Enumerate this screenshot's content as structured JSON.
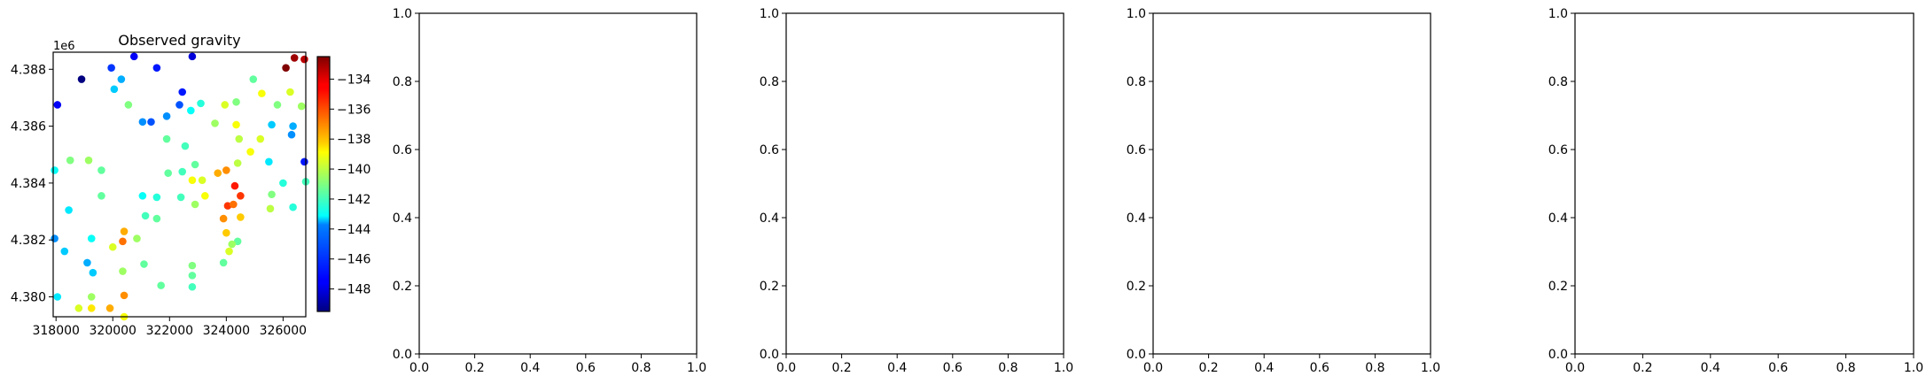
{
  "chart_data": [
    {
      "type": "scatter",
      "title": "Observed gravity",
      "xlabel": "",
      "ylabel": "",
      "xlim": [
        317900,
        326800
      ],
      "ylim": [
        4379300,
        4388600
      ],
      "x_ticks": [
        318000,
        320000,
        322000,
        324000,
        326000
      ],
      "x_tick_labels": [
        "318000",
        "320000",
        "322000",
        "324000",
        "326000"
      ],
      "y_ticks": [
        4380000,
        4382000,
        4384000,
        4386000,
        4388000
      ],
      "y_tick_labels": [
        "4.380",
        "4.382",
        "4.384",
        "4.386",
        "4.388"
      ],
      "y_offset_label": "1e6",
      "colorbar": {
        "colormap": "jet",
        "vmin": -149.5,
        "vmax": -132.5,
        "ticks": [
          -134,
          -136,
          -138,
          -140,
          -142,
          -144,
          -146,
          -148
        ],
        "tick_labels": [
          "−134",
          "−136",
          "−138",
          "−140",
          "−142",
          "−144",
          "−146",
          "−148"
        ]
      },
      "grid": false,
      "points": [
        {
          "x": 318050,
          "y": 4386750,
          "v": -147.5
        },
        {
          "x": 318900,
          "y": 4387650,
          "v": -149.5
        },
        {
          "x": 319950,
          "y": 4388050,
          "v": -146.5
        },
        {
          "x": 320750,
          "y": 4388450,
          "v": -147.5
        },
        {
          "x": 321550,
          "y": 4388050,
          "v": -147.0
        },
        {
          "x": 322800,
          "y": 4388450,
          "v": -148.0
        },
        {
          "x": 322450,
          "y": 4387200,
          "v": -147.0
        },
        {
          "x": 322350,
          "y": 4386750,
          "v": -146.0
        },
        {
          "x": 321900,
          "y": 4386350,
          "v": -145.0
        },
        {
          "x": 321350,
          "y": 4386150,
          "v": -146.0
        },
        {
          "x": 321050,
          "y": 4386150,
          "v": -145.0
        },
        {
          "x": 320050,
          "y": 4387300,
          "v": -144.0
        },
        {
          "x": 320300,
          "y": 4387650,
          "v": -144.5
        },
        {
          "x": 320550,
          "y": 4386750,
          "v": -141.0
        },
        {
          "x": 322750,
          "y": 4386550,
          "v": -143.0
        },
        {
          "x": 323100,
          "y": 4386800,
          "v": -142.5
        },
        {
          "x": 323600,
          "y": 4386100,
          "v": -140.5
        },
        {
          "x": 323950,
          "y": 4386750,
          "v": -139.5
        },
        {
          "x": 324350,
          "y": 4386850,
          "v": -141.0
        },
        {
          "x": 324950,
          "y": 4387650,
          "v": -141.5
        },
        {
          "x": 325250,
          "y": 4387150,
          "v": -139.0
        },
        {
          "x": 325800,
          "y": 4386750,
          "v": -141.0
        },
        {
          "x": 326250,
          "y": 4387200,
          "v": -139.5
        },
        {
          "x": 326650,
          "y": 4386700,
          "v": -140.5
        },
        {
          "x": 326100,
          "y": 4388050,
          "v": -132.5
        },
        {
          "x": 326400,
          "y": 4388400,
          "v": -133.0
        },
        {
          "x": 326750,
          "y": 4388350,
          "v": -133.5
        },
        {
          "x": 326350,
          "y": 4386000,
          "v": -144.5
        },
        {
          "x": 326300,
          "y": 4385700,
          "v": -145.0
        },
        {
          "x": 325600,
          "y": 4386050,
          "v": -144.0
        },
        {
          "x": 325200,
          "y": 4385550,
          "v": -139.5
        },
        {
          "x": 324350,
          "y": 4386050,
          "v": -139.0
        },
        {
          "x": 324450,
          "y": 4385550,
          "v": -140.0
        },
        {
          "x": 324850,
          "y": 4385100,
          "v": -139.0
        },
        {
          "x": 324400,
          "y": 4384700,
          "v": -140.0
        },
        {
          "x": 324000,
          "y": 4384450,
          "v": -137.0
        },
        {
          "x": 323700,
          "y": 4384350,
          "v": -137.5
        },
        {
          "x": 322900,
          "y": 4384650,
          "v": -141.5
        },
        {
          "x": 322550,
          "y": 4385300,
          "v": -142.0
        },
        {
          "x": 321900,
          "y": 4385550,
          "v": -141.5
        },
        {
          "x": 321950,
          "y": 4384350,
          "v": -141.5
        },
        {
          "x": 322450,
          "y": 4384400,
          "v": -142.0
        },
        {
          "x": 322800,
          "y": 4384100,
          "v": -139.0
        },
        {
          "x": 323150,
          "y": 4384100,
          "v": -139.5
        },
        {
          "x": 322400,
          "y": 4383500,
          "v": -142.0
        },
        {
          "x": 322900,
          "y": 4383250,
          "v": -140.5
        },
        {
          "x": 323250,
          "y": 4383550,
          "v": -139.0
        },
        {
          "x": 324300,
          "y": 4383900,
          "v": -135.0
        },
        {
          "x": 324500,
          "y": 4383550,
          "v": -135.5
        },
        {
          "x": 324050,
          "y": 4383200,
          "v": -135.5
        },
        {
          "x": 324250,
          "y": 4383250,
          "v": -136.5
        },
        {
          "x": 323900,
          "y": 4382750,
          "v": -137.0
        },
        {
          "x": 324500,
          "y": 4382800,
          "v": -138.0
        },
        {
          "x": 324000,
          "y": 4382250,
          "v": -138.0
        },
        {
          "x": 324400,
          "y": 4381950,
          "v": -141.5
        },
        {
          "x": 324200,
          "y": 4381850,
          "v": -140.5
        },
        {
          "x": 324100,
          "y": 4381600,
          "v": -139.5
        },
        {
          "x": 323900,
          "y": 4381200,
          "v": -141.5
        },
        {
          "x": 325500,
          "y": 4384750,
          "v": -143.5
        },
        {
          "x": 326000,
          "y": 4384000,
          "v": -142.5
        },
        {
          "x": 325600,
          "y": 4383600,
          "v": -141.0
        },
        {
          "x": 325550,
          "y": 4383100,
          "v": -140.0
        },
        {
          "x": 326350,
          "y": 4383150,
          "v": -142.5
        },
        {
          "x": 326750,
          "y": 4384750,
          "v": -147.0
        },
        {
          "x": 326800,
          "y": 4384050,
          "v": -142.0
        },
        {
          "x": 317950,
          "y": 4384450,
          "v": -143.0
        },
        {
          "x": 318500,
          "y": 4384800,
          "v": -141.0
        },
        {
          "x": 319150,
          "y": 4384800,
          "v": -140.5
        },
        {
          "x": 319600,
          "y": 4384450,
          "v": -141.5
        },
        {
          "x": 319600,
          "y": 4383550,
          "v": -141.5
        },
        {
          "x": 318450,
          "y": 4383050,
          "v": -143.5
        },
        {
          "x": 317950,
          "y": 4382050,
          "v": -145.0
        },
        {
          "x": 318300,
          "y": 4381600,
          "v": -144.0
        },
        {
          "x": 319100,
          "y": 4381200,
          "v": -144.5
        },
        {
          "x": 319250,
          "y": 4382050,
          "v": -143.0
        },
        {
          "x": 319300,
          "y": 4380850,
          "v": -144.0
        },
        {
          "x": 321050,
          "y": 4383550,
          "v": -143.0
        },
        {
          "x": 321550,
          "y": 4383500,
          "v": -142.5
        },
        {
          "x": 321150,
          "y": 4382850,
          "v": -142.0
        },
        {
          "x": 321550,
          "y": 4382750,
          "v": -141.5
        },
        {
          "x": 320400,
          "y": 4382300,
          "v": -137.5
        },
        {
          "x": 320350,
          "y": 4381950,
          "v": -136.5
        },
        {
          "x": 320850,
          "y": 4382050,
          "v": -140.5
        },
        {
          "x": 320000,
          "y": 4381750,
          "v": -139.5
        },
        {
          "x": 321100,
          "y": 4381150,
          "v": -141.5
        },
        {
          "x": 320350,
          "y": 4380900,
          "v": -140.5
        },
        {
          "x": 321700,
          "y": 4380400,
          "v": -141.5
        },
        {
          "x": 322800,
          "y": 4381100,
          "v": -141.0
        },
        {
          "x": 322800,
          "y": 4380750,
          "v": -141.5
        },
        {
          "x": 322800,
          "y": 4380350,
          "v": -142.0
        },
        {
          "x": 318050,
          "y": 4380000,
          "v": -143.5
        },
        {
          "x": 318800,
          "y": 4379600,
          "v": -139.5
        },
        {
          "x": 319250,
          "y": 4380000,
          "v": -140.5
        },
        {
          "x": 319250,
          "y": 4379600,
          "v": -138.5
        },
        {
          "x": 319900,
          "y": 4379600,
          "v": -137.5
        },
        {
          "x": 320400,
          "y": 4380050,
          "v": -137.0
        },
        {
          "x": 320400,
          "y": 4379300,
          "v": -139.0
        }
      ]
    },
    {
      "type": "scatter",
      "title": "",
      "xlim": [
        0,
        1
      ],
      "ylim": [
        0,
        1
      ],
      "x_ticks": [
        0,
        0.2,
        0.4,
        0.6,
        0.8,
        1
      ],
      "x_tick_labels": [
        "0.0",
        "0.2",
        "0.4",
        "0.6",
        "0.8",
        "1.0"
      ],
      "y_ticks": [
        0,
        0.2,
        0.4,
        0.6,
        0.8,
        1
      ],
      "y_tick_labels": [
        "0.0",
        "0.2",
        "0.4",
        "0.6",
        "0.8",
        "1.0"
      ],
      "points": []
    },
    {
      "type": "scatter",
      "title": "",
      "xlim": [
        0,
        1
      ],
      "ylim": [
        0,
        1
      ],
      "x_ticks": [
        0,
        0.2,
        0.4,
        0.6,
        0.8,
        1
      ],
      "x_tick_labels": [
        "0.0",
        "0.2",
        "0.4",
        "0.6",
        "0.8",
        "1.0"
      ],
      "y_ticks": [
        0,
        0.2,
        0.4,
        0.6,
        0.8,
        1
      ],
      "y_tick_labels": [
        "0.0",
        "0.2",
        "0.4",
        "0.6",
        "0.8",
        "1.0"
      ],
      "points": []
    },
    {
      "type": "scatter",
      "title": "",
      "xlim": [
        0,
        1
      ],
      "ylim": [
        0,
        1
      ],
      "x_ticks": [
        0,
        0.2,
        0.4,
        0.6,
        0.8,
        1
      ],
      "x_tick_labels": [
        "0.0",
        "0.2",
        "0.4",
        "0.6",
        "0.8",
        "1.0"
      ],
      "y_ticks": [
        0,
        0.2,
        0.4,
        0.6,
        0.8,
        1
      ],
      "y_tick_labels": [
        "0.0",
        "0.2",
        "0.4",
        "0.6",
        "0.8",
        "1.0"
      ],
      "points": []
    },
    {
      "type": "scatter",
      "title": "",
      "xlim": [
        0,
        1
      ],
      "ylim": [
        0,
        1
      ],
      "x_ticks": [
        0,
        0.2,
        0.4,
        0.6,
        0.8,
        1
      ],
      "x_tick_labels": [
        "0.0",
        "0.2",
        "0.4",
        "0.6",
        "0.8",
        "1.0"
      ],
      "y_ticks": [
        0,
        0.2,
        0.4,
        0.6,
        0.8,
        1
      ],
      "y_tick_labels": [
        "0.0",
        "0.2",
        "0.4",
        "0.6",
        "0.8",
        "1.0"
      ],
      "points": []
    }
  ]
}
